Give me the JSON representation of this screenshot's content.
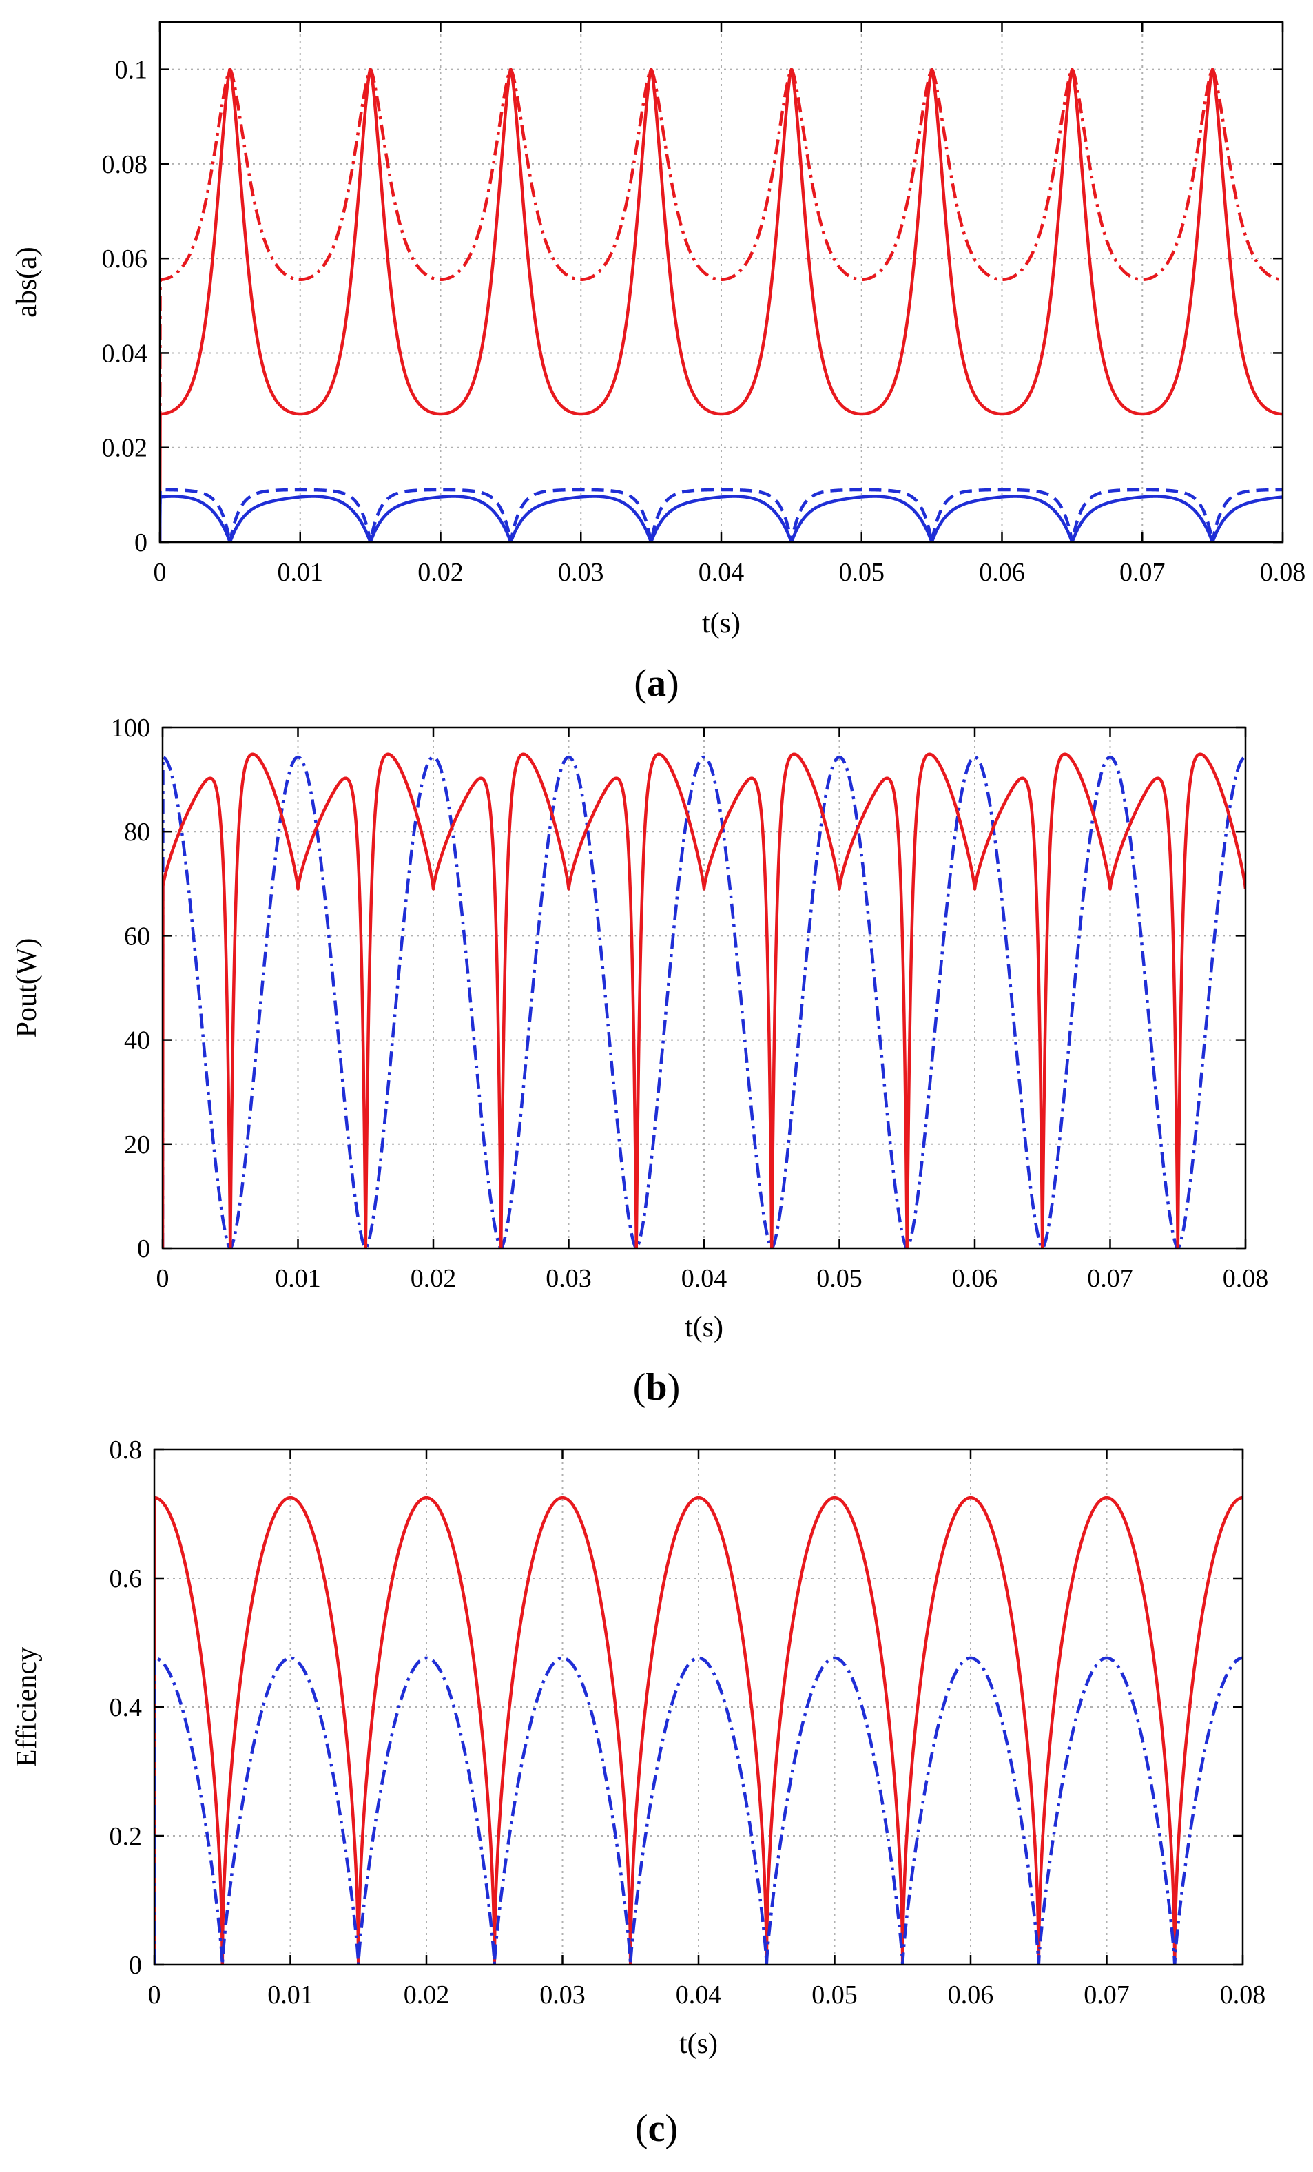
{
  "colors": {
    "red": "#e8191e",
    "blue": "#1f2ed6",
    "grid": "#b0b0b0"
  },
  "chart_data": [
    {
      "type": "line",
      "caption": {
        "open": "(",
        "letter": "a",
        "close": ")"
      },
      "xlabel": "t(s)",
      "ylabel": "abs(a)",
      "xlim": [
        0,
        0.08
      ],
      "ylim": [
        0,
        0.11
      ],
      "xticks": [
        0,
        0.01,
        0.02,
        0.03,
        0.04,
        0.05,
        0.06,
        0.07,
        0.08
      ],
      "xtick_labels": [
        "0",
        "0.01",
        "0.02",
        "0.03",
        "0.04",
        "0.05",
        "0.06",
        "0.07",
        "0.08"
      ],
      "yticks": [
        0,
        0.02,
        0.04,
        0.06,
        0.08,
        0.1
      ],
      "ytick_labels": [
        "0",
        "0.02",
        "0.04",
        "0.06",
        "0.08",
        "0.1"
      ],
      "grid": true,
      "period": 0.01,
      "phase": 0.005,
      "series": [
        {
          "name": "red dash-dot",
          "color": "red",
          "style": "dashdot",
          "shape": "peak",
          "min": 0.05,
          "max": 0.1,
          "k": 2.2
        },
        {
          "name": "red solid",
          "color": "red",
          "style": "solid",
          "shape": "peak",
          "min": 0.024,
          "max": 0.1,
          "k": 3.2
        },
        {
          "name": "blue dash",
          "color": "blue",
          "style": "dash",
          "shape": "notch",
          "min": 0,
          "max": 0.0112,
          "k": 4.5
        },
        {
          "name": "blue solid",
          "color": "blue",
          "style": "solid",
          "shape": "notch2",
          "min": 0,
          "max": 0.0104,
          "k": 2.5
        }
      ]
    },
    {
      "type": "line",
      "caption": {
        "open": "(",
        "letter": "b",
        "close": ")"
      },
      "xlabel": "t(s)",
      "ylabel": "Pout(W)",
      "xlim": [
        0,
        0.08
      ],
      "ylim": [
        0,
        100
      ],
      "xticks": [
        0,
        0.01,
        0.02,
        0.03,
        0.04,
        0.05,
        0.06,
        0.07,
        0.08
      ],
      "xtick_labels": [
        "0",
        "0.01",
        "0.02",
        "0.03",
        "0.04",
        "0.05",
        "0.06",
        "0.07",
        "0.08"
      ],
      "yticks": [
        0,
        20,
        40,
        60,
        80,
        100
      ],
      "ytick_labels": [
        "0",
        "20",
        "40",
        "60",
        "80",
        "100"
      ],
      "grid": true,
      "period": 0.01,
      "phase": 0.005,
      "series": [
        {
          "name": "blue dash-dot",
          "color": "blue",
          "style": "dashdot",
          "shape": "notchpow",
          "min": 0,
          "max": 94.3,
          "k": 1.6
        },
        {
          "name": "red solid",
          "color": "red",
          "style": "solid",
          "shape": "tricomp",
          "min": 0,
          "max": 96.5,
          "k": 0
        }
      ]
    },
    {
      "type": "line",
      "caption": {
        "open": "(",
        "letter": "c",
        "close": ")"
      },
      "xlabel": "t(s)",
      "ylabel": "Efficiency",
      "xlim": [
        0,
        0.08
      ],
      "ylim": [
        0,
        0.8
      ],
      "xticks": [
        0,
        0.01,
        0.02,
        0.03,
        0.04,
        0.05,
        0.06,
        0.07,
        0.08
      ],
      "xtick_labels": [
        "0",
        "0.01",
        "0.02",
        "0.03",
        "0.04",
        "0.05",
        "0.06",
        "0.07",
        "0.08"
      ],
      "yticks": [
        0,
        0.2,
        0.4,
        0.6,
        0.8
      ],
      "ytick_labels": [
        "0",
        "0.2",
        "0.4",
        "0.6",
        "0.8"
      ],
      "grid": true,
      "period": 0.01,
      "phase": 0.005,
      "series": [
        {
          "name": "red solid",
          "color": "red",
          "style": "solid",
          "shape": "notchpow",
          "min": 0,
          "max": 0.725,
          "k": 0.55
        },
        {
          "name": "blue dash-dot",
          "color": "blue",
          "style": "dashdot",
          "shape": "notchpow",
          "min": 0,
          "max": 0.476,
          "k": 0.8
        }
      ]
    }
  ]
}
